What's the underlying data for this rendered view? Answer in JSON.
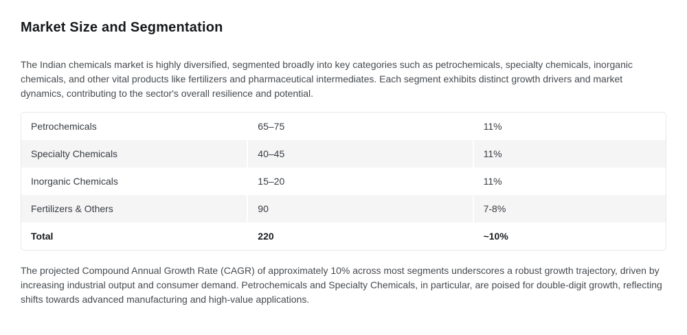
{
  "page": {
    "title": "Market Size and Segmentation",
    "intro": "The Indian chemicals market is highly diversified, segmented broadly into key categories such as petrochemicals, specialty chemicals, inorganic chemicals, and other vital products like fertilizers and pharmaceutical intermediates. Each segment exhibits distinct growth drivers and market dynamics, contributing to the sector's overall resilience and potential.",
    "outro": "The projected Compound Annual Growth Rate (CAGR) of approximately 10% across most segments underscores a robust growth trajectory, driven by increasing industrial output and consumer demand. Petrochemicals and Specialty Chemicals, in particular, are poised for double-digit growth, reflecting shifts towards advanced manufacturing and high-value applications."
  },
  "table": {
    "rows": [
      {
        "segment": "Petrochemicals",
        "size": "65–75",
        "cagr": "11%"
      },
      {
        "segment": "Specialty Chemicals",
        "size": "40–45",
        "cagr": "11%"
      },
      {
        "segment": "Inorganic Chemicals",
        "size": "15–20",
        "cagr": "11%"
      },
      {
        "segment": "Fertilizers & Others",
        "size": "90",
        "cagr": "7-8%"
      },
      {
        "segment": "Total",
        "size": "220",
        "cagr": "~10%"
      }
    ]
  },
  "colors": {
    "row_alt_background": "#f5f5f6",
    "table_border": "#e8e8e8",
    "body_text": "#45494e",
    "heading_text": "#15181b"
  }
}
